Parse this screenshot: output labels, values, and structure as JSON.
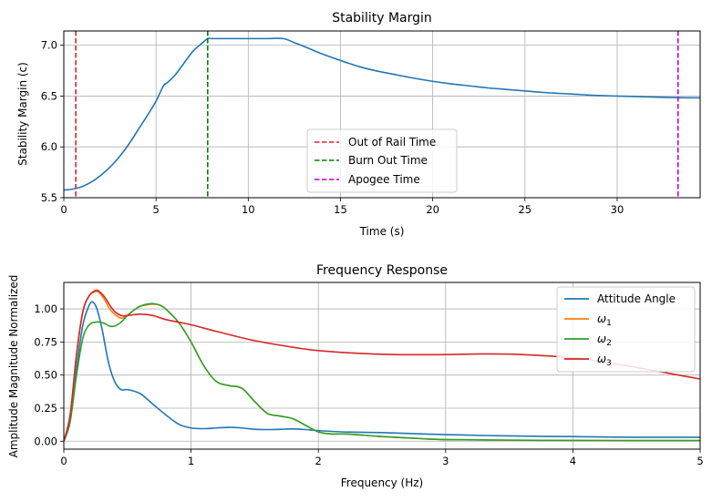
{
  "chart_data": [
    {
      "type": "line",
      "title": "Stability Margin",
      "xlabel": "Time (s)",
      "ylabel": "Stability Margin (c)",
      "xlim": [
        0,
        34.5
      ],
      "ylim": [
        5.5,
        7.14
      ],
      "xticks": [
        0,
        5,
        10,
        15,
        20,
        25,
        30
      ],
      "yticks": [
        5.5,
        6.0,
        6.5,
        7.0
      ],
      "xtick_labels": [
        "0",
        "5",
        "10",
        "15",
        "20",
        "25",
        "30"
      ],
      "ytick_labels": [
        "5.5",
        "6.0",
        "6.5",
        "7.0"
      ],
      "grid": true,
      "legend_position": "lower-center",
      "series": [
        {
          "color": "#1f77b4",
          "x": [
            0,
            0.5,
            1,
            1.5,
            2,
            2.5,
            3,
            3.5,
            4,
            4.5,
            5,
            5.4,
            5.6,
            6,
            6.5,
            7,
            7.5,
            7.8,
            8,
            9,
            10,
            11,
            11.9,
            12.5,
            13,
            14,
            15,
            16,
            17,
            18,
            19,
            20,
            21,
            22,
            23,
            24,
            25,
            26,
            27,
            28,
            29,
            30,
            31,
            32,
            33,
            34.5
          ],
          "y": [
            5.575,
            5.585,
            5.61,
            5.655,
            5.72,
            5.8,
            5.9,
            6.02,
            6.16,
            6.3,
            6.45,
            6.6,
            6.63,
            6.7,
            6.82,
            6.94,
            7.02,
            7.065,
            7.065,
            7.065,
            7.065,
            7.065,
            7.065,
            7.025,
            6.99,
            6.915,
            6.85,
            6.79,
            6.745,
            6.71,
            6.675,
            6.645,
            6.62,
            6.6,
            6.58,
            6.565,
            6.55,
            6.535,
            6.525,
            6.515,
            6.505,
            6.5,
            6.495,
            6.49,
            6.485,
            6.482
          ]
        }
      ],
      "events": [
        {
          "name": "Out of Rail Time",
          "x": 0.65,
          "color": "#d62728"
        },
        {
          "name": "Burn Out Time",
          "x": 7.8,
          "color": "#008000"
        },
        {
          "name": "Apogee Time",
          "x": 33.3,
          "color": "#bf00bf"
        }
      ]
    },
    {
      "type": "line",
      "title": "Frequency Response",
      "xlabel": "Frequency (Hz)",
      "ylabel": "Amplitude Magnitude Normalized",
      "xlim": [
        0,
        5
      ],
      "ylim": [
        -0.06,
        1.2
      ],
      "xticks": [
        0,
        1,
        2,
        3,
        4,
        5
      ],
      "yticks": [
        0.0,
        0.25,
        0.5,
        0.75,
        1.0
      ],
      "xtick_labels": [
        "0",
        "1",
        "2",
        "3",
        "4",
        "5"
      ],
      "ytick_labels": [
        "0.00",
        "0.25",
        "0.50",
        "0.75",
        "1.00"
      ],
      "grid": true,
      "legend_position": "upper-right",
      "series": [
        {
          "name": "Attitude Angle",
          "color": "#1f77b4",
          "x": [
            0,
            0.05,
            0.1,
            0.15,
            0.2,
            0.23,
            0.26,
            0.3,
            0.35,
            0.4,
            0.45,
            0.5,
            0.6,
            0.7,
            0.8,
            0.9,
            1.0,
            1.1,
            1.2,
            1.3,
            1.4,
            1.5,
            1.6,
            1.7,
            1.8,
            1.9,
            2.0,
            2.2,
            2.5,
            3.0,
            3.5,
            4.0,
            4.5,
            5.0
          ],
          "y": [
            0.0,
            0.15,
            0.55,
            0.88,
            1.03,
            1.05,
            1.0,
            0.85,
            0.6,
            0.45,
            0.39,
            0.39,
            0.36,
            0.28,
            0.2,
            0.13,
            0.1,
            0.095,
            0.1,
            0.105,
            0.1,
            0.09,
            0.088,
            0.09,
            0.093,
            0.088,
            0.08,
            0.07,
            0.065,
            0.05,
            0.04,
            0.035,
            0.03,
            0.03
          ]
        },
        {
          "name": "ω1",
          "color": "#ff7f0e",
          "x": [
            0,
            0.05,
            0.1,
            0.15,
            0.2,
            0.25,
            0.28,
            0.32,
            0.36,
            0.4,
            0.45,
            0.5,
            0.55,
            0.6,
            0.65,
            0.7,
            0.75,
            0.8,
            0.9,
            1.0,
            1.1,
            1.2,
            1.3,
            1.4,
            1.5,
            1.6,
            1.7,
            1.8,
            1.9,
            2.0,
            2.1,
            2.2,
            2.3,
            2.5,
            2.8,
            3.0,
            3.5,
            4.0,
            4.5,
            5.0
          ],
          "y": [
            0.0,
            0.2,
            0.65,
            0.98,
            1.1,
            1.13,
            1.12,
            1.07,
            1.0,
            0.96,
            0.93,
            0.95,
            0.99,
            1.02,
            1.03,
            1.035,
            1.03,
            1.0,
            0.9,
            0.75,
            0.57,
            0.45,
            0.42,
            0.4,
            0.3,
            0.21,
            0.19,
            0.17,
            0.12,
            0.07,
            0.055,
            0.055,
            0.05,
            0.035,
            0.02,
            0.012,
            0.008,
            0.006,
            0.005,
            0.005
          ]
        },
        {
          "name": "ω2",
          "color": "#2ca02c",
          "x": [
            0,
            0.05,
            0.1,
            0.15,
            0.2,
            0.25,
            0.28,
            0.32,
            0.36,
            0.4,
            0.45,
            0.5,
            0.55,
            0.6,
            0.65,
            0.7,
            0.75,
            0.8,
            0.9,
            1.0,
            1.1,
            1.2,
            1.3,
            1.4,
            1.5,
            1.6,
            1.7,
            1.8,
            1.9,
            2.0,
            2.1,
            2.2,
            2.3,
            2.5,
            2.8,
            3.0,
            3.5,
            4.0,
            4.5,
            5.0
          ],
          "y": [
            0.0,
            0.15,
            0.5,
            0.78,
            0.88,
            0.9,
            0.9,
            0.89,
            0.87,
            0.87,
            0.9,
            0.95,
            0.99,
            1.02,
            1.035,
            1.04,
            1.03,
            1.0,
            0.9,
            0.75,
            0.57,
            0.45,
            0.42,
            0.4,
            0.3,
            0.21,
            0.19,
            0.17,
            0.12,
            0.07,
            0.055,
            0.055,
            0.05,
            0.035,
            0.02,
            0.012,
            0.008,
            0.006,
            0.005,
            0.005
          ]
        },
        {
          "name": "ω3",
          "color": "#d62728",
          "x": [
            0,
            0.05,
            0.1,
            0.15,
            0.2,
            0.25,
            0.28,
            0.32,
            0.36,
            0.4,
            0.45,
            0.5,
            0.6,
            0.7,
            0.8,
            1.0,
            1.2,
            1.5,
            1.8,
            2.0,
            2.3,
            2.6,
            3.0,
            3.3,
            3.6,
            4.0,
            4.3,
            4.6,
            4.8,
            5.0
          ],
          "y": [
            0.0,
            0.2,
            0.66,
            0.98,
            1.1,
            1.14,
            1.13,
            1.09,
            1.03,
            0.98,
            0.95,
            0.95,
            0.96,
            0.95,
            0.92,
            0.88,
            0.83,
            0.76,
            0.71,
            0.685,
            0.665,
            0.655,
            0.655,
            0.66,
            0.655,
            0.63,
            0.59,
            0.54,
            0.505,
            0.47
          ]
        }
      ]
    }
  ],
  "legend_labels": {
    "chart1": [
      "Out of Rail Time",
      "Burn Out Time",
      "Apogee Time"
    ],
    "chart2": [
      "Attitude Angle",
      "ω1",
      "ω2",
      "ω3"
    ]
  }
}
